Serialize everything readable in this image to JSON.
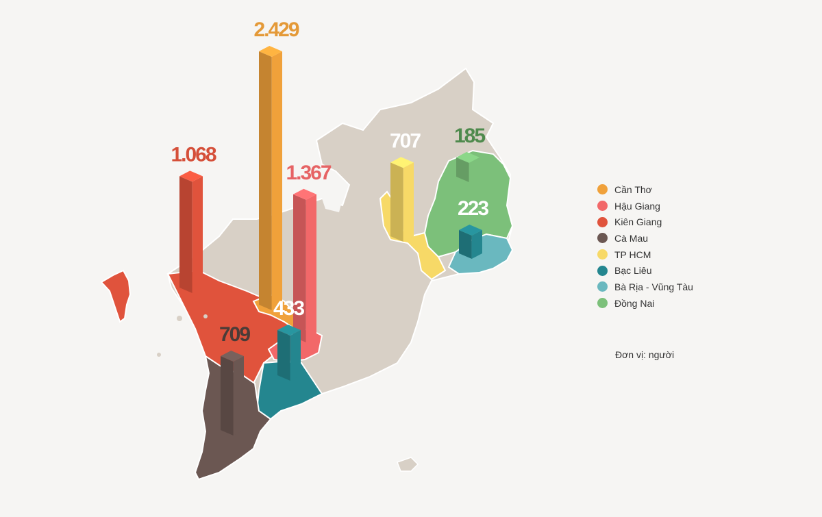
{
  "chart_data": {
    "type": "bar",
    "categories": [
      "Cần Thơ",
      "Hậu Giang",
      "Kiên Giang",
      "Cà Mau",
      "TP HCM",
      "Bạc Liêu",
      "Bà Rịa - Vũng Tàu",
      "Đồng Nai"
    ],
    "values": [
      2429,
      1367,
      1068,
      709,
      707,
      433,
      null,
      185
    ],
    "labels": [
      "2.429",
      "1.367",
      "1.068",
      "709",
      "707",
      "433",
      "223",
      "185"
    ],
    "extra_bar": {
      "value": 223,
      "label": "223",
      "color_of": "Bạc Liêu"
    },
    "colors": [
      "#f0a13a",
      "#f26869",
      "#e0533c",
      "#6b5752",
      "#f7d967",
      "#24868f",
      "#6ab8bf",
      "#7cc07a"
    ],
    "unit_note": "Đơn vị: người",
    "legend_position": "right",
    "grid": false
  }
}
